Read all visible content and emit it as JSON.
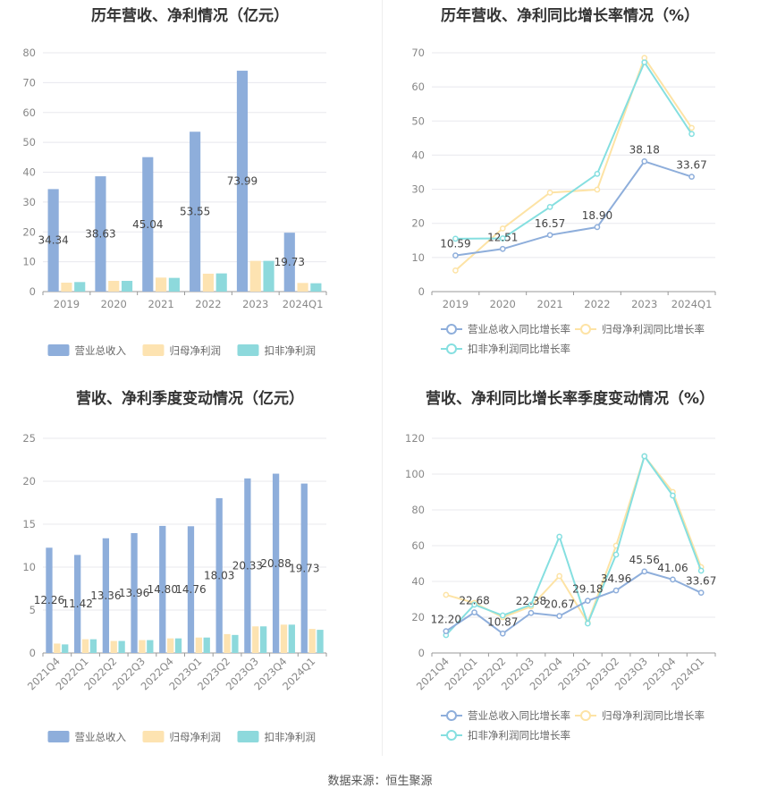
{
  "source": "数据来源：恒生聚源",
  "colors": {
    "revenue": "#8eaedb",
    "net_profit": "#fde3b1",
    "deducted_profit": "#8dd9dc",
    "revenue_line": "#8eaedb",
    "net_profit_line": "#fde3a5",
    "deducted_line": "#85dfe0",
    "grid": "#e8e8ee",
    "axis": "#999999"
  },
  "panels": [
    {
      "id": "annual-values",
      "title": "历年营收、净利情况（亿元）",
      "chart_data": {
        "type": "bar",
        "categories": [
          "2019",
          "2020",
          "2021",
          "2022",
          "2023",
          "2024Q1"
        ],
        "ylim": [
          0,
          80
        ],
        "yticks": [
          0,
          10,
          20,
          30,
          40,
          50,
          60,
          70,
          80
        ],
        "series": [
          {
            "name": "营业总收入",
            "values": [
              34.34,
              38.63,
              45.04,
              53.55,
              73.99,
              19.73
            ],
            "labels": [
              "34.34",
              "38.63",
              "45.04",
              "53.55",
              "73.99",
              "19.73"
            ]
          },
          {
            "name": "归母净利润",
            "values": [
              3.0,
              3.6,
              4.7,
              6.0,
              10.3,
              2.9
            ]
          },
          {
            "name": "扣非净利润",
            "values": [
              3.2,
              3.6,
              4.6,
              6.1,
              10.3,
              2.8
            ]
          }
        ]
      }
    },
    {
      "id": "annual-growth",
      "title": "历年营收、净利同比增长率情况（%）",
      "chart_data": {
        "type": "line",
        "categories": [
          "2019",
          "2020",
          "2021",
          "2022",
          "2023",
          "2024Q1"
        ],
        "ylim": [
          0,
          70
        ],
        "yticks": [
          0,
          10,
          20,
          30,
          40,
          50,
          60,
          70
        ],
        "series": [
          {
            "name": "营业总收入同比增长率",
            "values": [
              10.59,
              12.51,
              16.57,
              18.9,
              38.18,
              33.67
            ],
            "labels": [
              "10.59",
              "12.51",
              "16.57",
              "18.90",
              "38.18",
              "33.67"
            ]
          },
          {
            "name": "归母净利润同比增长率",
            "values": [
              6.2,
              18.5,
              29.0,
              29.9,
              68.5,
              48.0
            ]
          },
          {
            "name": "扣非净利润同比增长率",
            "values": [
              15.5,
              15.6,
              24.8,
              34.5,
              67.2,
              46.2
            ]
          }
        ]
      }
    },
    {
      "id": "quarterly-values",
      "title": "营收、净利季度变动情况（亿元）",
      "chart_data": {
        "type": "bar",
        "categories": [
          "2021Q4",
          "2022Q1",
          "2022Q2",
          "2022Q3",
          "2022Q4",
          "2023Q1",
          "2023Q2",
          "2023Q3",
          "2023Q4",
          "2024Q1"
        ],
        "ylim": [
          0,
          25
        ],
        "yticks": [
          0,
          5,
          10,
          15,
          20,
          25
        ],
        "series": [
          {
            "name": "营业总收入",
            "values": [
              12.26,
              11.42,
              13.36,
              13.96,
              14.8,
              14.76,
              18.03,
              20.33,
              20.88,
              19.73
            ],
            "labels": [
              "12.26",
              "11.42",
              "13.36",
              "13.96",
              "14.80",
              "14.76",
              "18.03",
              "20.33",
              "20.88",
              "19.73"
            ]
          },
          {
            "name": "归母净利润",
            "values": [
              1.1,
              1.6,
              1.4,
              1.5,
              1.7,
              1.8,
              2.2,
              3.1,
              3.3,
              2.8
            ]
          },
          {
            "name": "扣非净利润",
            "values": [
              1.0,
              1.6,
              1.4,
              1.5,
              1.7,
              1.8,
              2.1,
              3.1,
              3.3,
              2.7
            ]
          }
        ]
      }
    },
    {
      "id": "quarterly-growth",
      "title": "营收、净利同比增长率季度变动情况（%）",
      "chart_data": {
        "type": "line",
        "categories": [
          "2021Q4",
          "2022Q1",
          "2022Q2",
          "2022Q3",
          "2022Q4",
          "2023Q1",
          "2023Q2",
          "2023Q3",
          "2023Q4",
          "2024Q1"
        ],
        "ylim": [
          0,
          120
        ],
        "yticks": [
          0,
          20,
          40,
          60,
          80,
          100,
          120
        ],
        "series": [
          {
            "name": "营业总收入同比增长率",
            "values": [
              12.2,
              22.68,
              10.87,
              22.38,
              20.67,
              29.18,
              34.96,
              45.56,
              41.06,
              33.67
            ],
            "labels": [
              "12.20",
              "22.68",
              "10.87",
              "22.38",
              "20.67",
              "29.18",
              "34.96",
              "45.56",
              "41.06",
              "33.67"
            ]
          },
          {
            "name": "归母净利润同比增长率",
            "values": [
              32.5,
              28.0,
              20.0,
              26.0,
              43.0,
              17.0,
              60.0,
              110.0,
              90.0,
              48.0
            ]
          },
          {
            "name": "扣非净利润同比增长率",
            "values": [
              10.0,
              27.0,
              21.0,
              27.0,
              65.0,
              16.5,
              55.0,
              110.0,
              88.0,
              46.0
            ]
          }
        ]
      }
    }
  ]
}
